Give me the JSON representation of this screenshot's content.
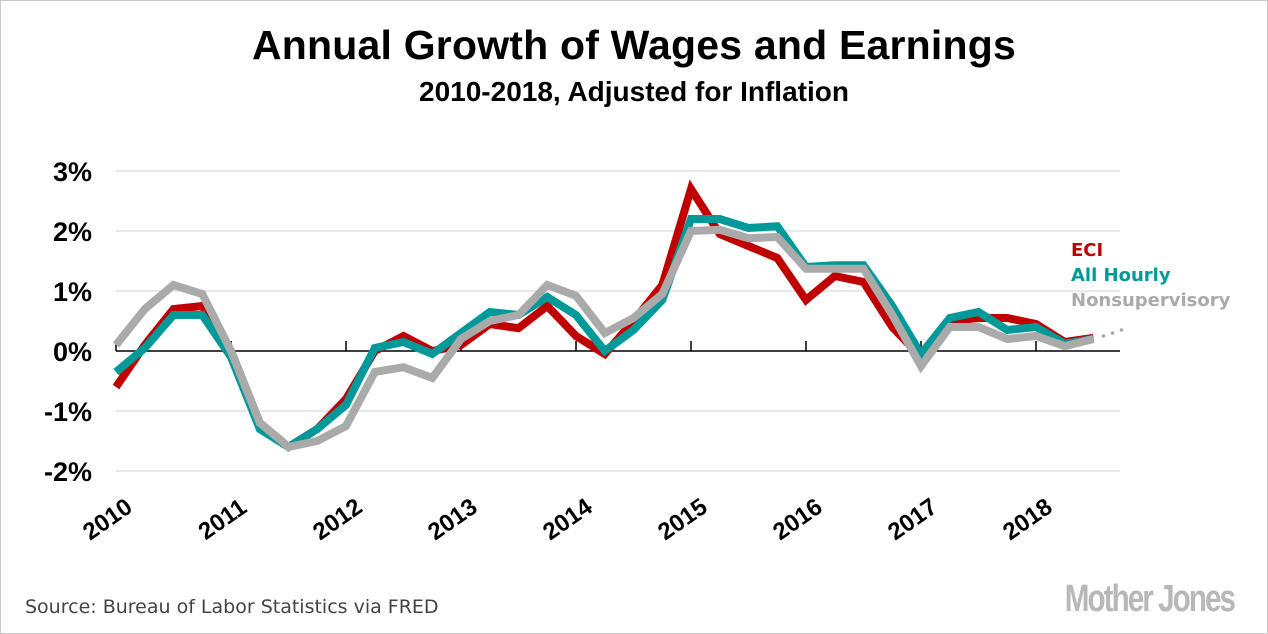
{
  "chart_data": {
    "type": "line",
    "title": "Annual Growth of Wages and Earnings",
    "subtitle": "2010-2018, Adjusted for Inflation",
    "xlabel": "",
    "ylabel": "",
    "x_start": 2010.0,
    "x_step": 0.25,
    "xlim": [
      2010,
      2018.75
    ],
    "ylim": [
      -2,
      3
    ],
    "yticks": [
      3,
      2,
      1,
      0,
      -1,
      -2
    ],
    "ytick_labels": [
      "3%",
      "2%",
      "1%",
      "0%",
      "-1%",
      "-2%"
    ],
    "xticks": [
      2010,
      2011,
      2012,
      2013,
      2014,
      2015,
      2016,
      2017,
      2018
    ],
    "xtick_labels": [
      "2010",
      "2011",
      "2012",
      "2013",
      "2014",
      "2015",
      "2016",
      "2017",
      "2018"
    ],
    "grid": true,
    "legend_position": "right",
    "series": [
      {
        "name": "ECI",
        "color": "#c00000",
        "values": [
          -0.6,
          0.1,
          0.7,
          0.75,
          0.0,
          -1.2,
          -1.6,
          -1.3,
          -0.8,
          0.0,
          0.25,
          0.0,
          0.1,
          0.45,
          0.38,
          0.75,
          0.25,
          -0.05,
          0.5,
          1.1,
          2.7,
          1.95,
          1.75,
          1.55,
          0.85,
          1.25,
          1.15,
          0.4,
          -0.1,
          0.5,
          0.55,
          0.55,
          0.45,
          0.15,
          0.22
        ]
      },
      {
        "name": "All Hourly",
        "color": "#009999",
        "values": [
          -0.35,
          0.05,
          0.6,
          0.6,
          -0.1,
          -1.3,
          -1.6,
          -1.3,
          -0.9,
          0.05,
          0.15,
          -0.05,
          0.3,
          0.65,
          0.6,
          0.9,
          0.6,
          0.0,
          0.35,
          0.85,
          2.2,
          2.2,
          2.05,
          2.08,
          1.4,
          1.43,
          1.43,
          0.75,
          -0.05,
          0.55,
          0.65,
          0.35,
          0.4,
          0.12,
          0.2
        ]
      },
      {
        "name": "Nonsupervisory",
        "color": "#aaaaaa",
        "values": [
          0.1,
          0.7,
          1.1,
          0.95,
          0.0,
          -1.2,
          -1.6,
          -1.5,
          -1.25,
          -0.35,
          -0.27,
          -0.45,
          0.2,
          0.5,
          0.6,
          1.1,
          0.92,
          0.3,
          0.55,
          0.95,
          2.0,
          2.02,
          1.88,
          1.9,
          1.37,
          1.37,
          1.37,
          0.6,
          -0.25,
          0.4,
          0.4,
          0.2,
          0.25,
          0.08,
          0.2
        ]
      }
    ],
    "projection": {
      "note": "dotted continuation after last point",
      "color": "#aaaaaa"
    }
  },
  "legend": {
    "items": [
      {
        "label": "ECI",
        "color": "#c00000"
      },
      {
        "label": "All Hourly",
        "color": "#009999"
      },
      {
        "label": "Nonsupervisory",
        "color": "#aaaaaa"
      }
    ]
  },
  "footer": {
    "source": "Source: Bureau of Labor Statistics via FRED",
    "brand": "Mother Jones"
  }
}
